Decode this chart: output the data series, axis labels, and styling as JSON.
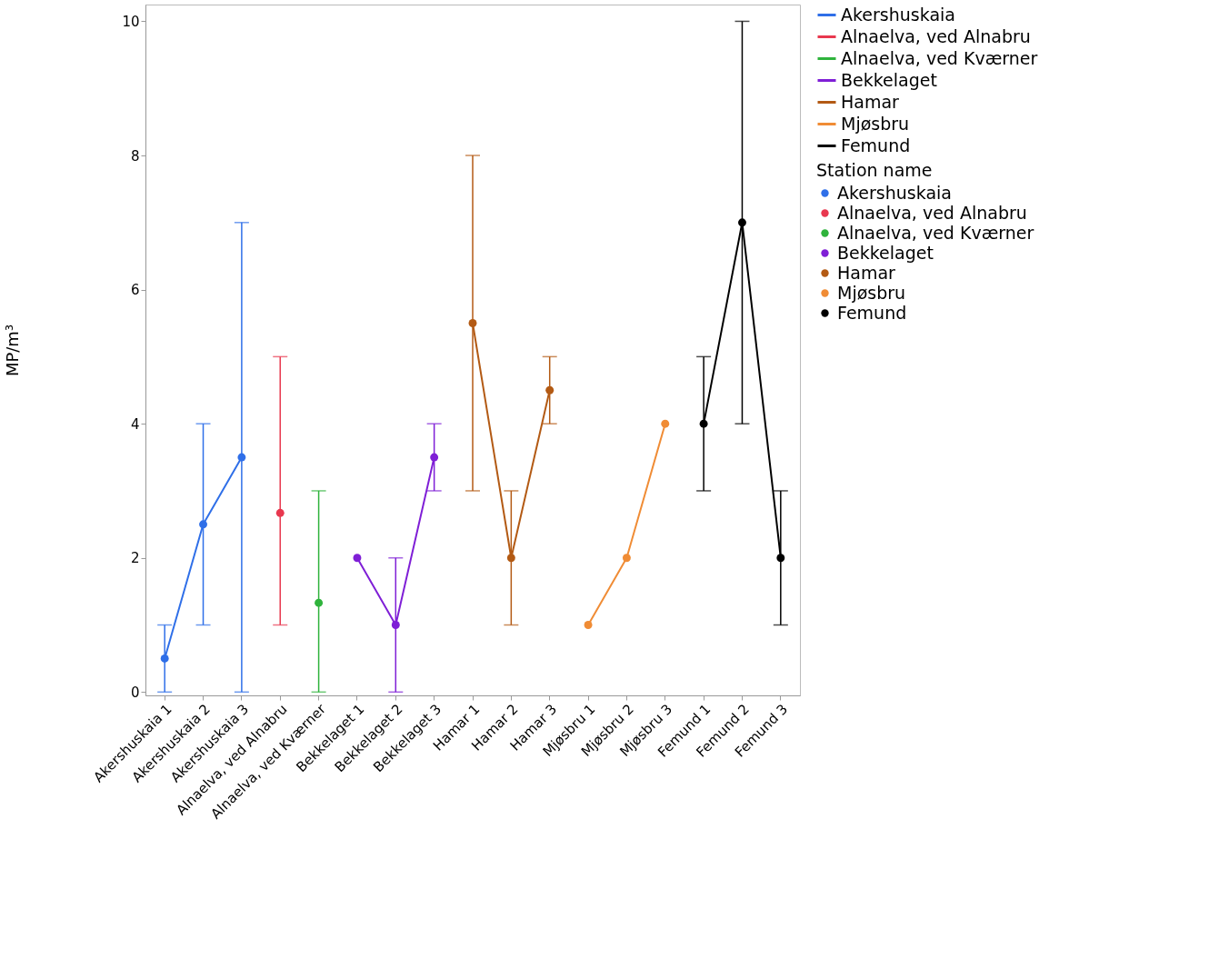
{
  "chart_data": {
    "type": "line",
    "ylabel": "MP/m³",
    "legend_title": "Station name",
    "legend": "right",
    "marker": "circle",
    "grid": false,
    "categories": [
      "Akershuskaia 1",
      "Akershuskaia 2",
      "Akershuskaia 3",
      "Alnaelva, ved Alnabru",
      "Alnaelva, ved Kværner",
      "Bekkelaget 1",
      "Bekkelaget 2",
      "Bekkelaget 3",
      "Hamar 1",
      "Hamar 2",
      "Hamar 3",
      "Mjøsbru 1",
      "Mjøsbru 2",
      "Mjøsbru 3",
      "Femund 1",
      "Femund 2",
      "Femund 3"
    ],
    "ylim": [
      -0.05,
      10.25
    ],
    "yticks": [
      0,
      2,
      4,
      6,
      8,
      10
    ],
    "series": [
      {
        "name": "Akershuskaia",
        "color": "#2f6fe8",
        "x": [
          "Akershuskaia 1",
          "Akershuskaia 2",
          "Akershuskaia 3"
        ],
        "values": [
          0.5,
          2.5,
          3.5
        ],
        "errors": [
          [
            0,
            1
          ],
          [
            1,
            4
          ],
          [
            0,
            7
          ]
        ]
      },
      {
        "name": "Alnaelva, ved Alnabru",
        "color": "#e8384f",
        "x": [
          "Alnaelva, ved Alnabru"
        ],
        "values": [
          2.67
        ],
        "errors": [
          [
            1,
            5
          ]
        ]
      },
      {
        "name": "Alnaelva, ved Kværner",
        "color": "#2fb33c",
        "x": [
          "Alnaelva, ved Kværner"
        ],
        "values": [
          1.33
        ],
        "errors": [
          [
            0,
            3
          ]
        ]
      },
      {
        "name": "Bekkelaget",
        "color": "#7f1fd6",
        "x": [
          "Bekkelaget 1",
          "Bekkelaget 2",
          "Bekkelaget 3"
        ],
        "values": [
          2,
          1,
          3.5
        ],
        "errors": [
          null,
          [
            0,
            2
          ],
          [
            3,
            4
          ]
        ]
      },
      {
        "name": "Hamar",
        "color": "#b35a14",
        "x": [
          "Hamar 1",
          "Hamar 2",
          "Hamar 3"
        ],
        "values": [
          5.5,
          2,
          4.5
        ],
        "errors": [
          [
            3,
            8
          ],
          [
            1,
            3
          ],
          [
            4,
            5
          ]
        ]
      },
      {
        "name": "Mjøsbru",
        "color": "#f08c35",
        "x": [
          "Mjøsbru 1",
          "Mjøsbru 2",
          "Mjøsbru 3"
        ],
        "values": [
          1,
          2,
          4
        ],
        "errors": [
          null,
          null,
          null
        ]
      },
      {
        "name": "Femund",
        "color": "#000000",
        "x": [
          "Femund 1",
          "Femund 2",
          "Femund 3"
        ],
        "values": [
          4,
          7,
          2
        ],
        "errors": [
          [
            3,
            5
          ],
          [
            4,
            10
          ],
          [
            1,
            3
          ]
        ]
      }
    ]
  }
}
